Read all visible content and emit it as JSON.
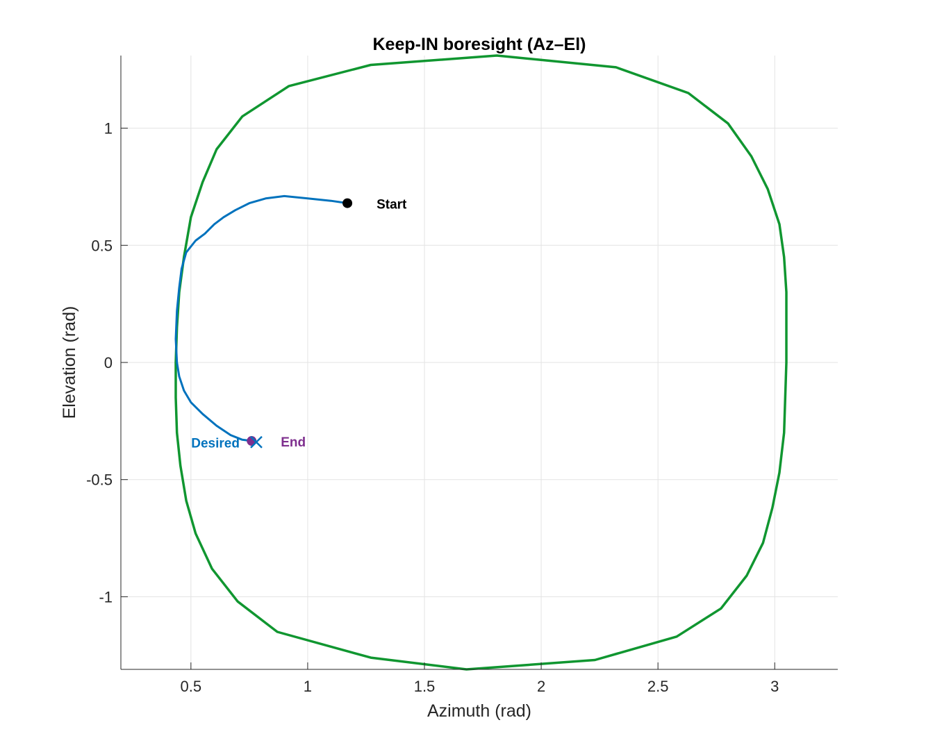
{
  "chart_data": {
    "type": "line",
    "title": "Keep-IN boresight (Az–El)",
    "xlabel": "Azimuth (rad)",
    "ylabel": "Elevation (rad)",
    "xlim": [
      0.2,
      3.27
    ],
    "ylim": [
      -1.31,
      1.31
    ],
    "xticks": [
      0.5,
      1,
      1.5,
      2,
      2.5,
      3
    ],
    "xtick_labels": [
      "0.5",
      "1",
      "1.5",
      "2",
      "2.5",
      "3"
    ],
    "yticks": [
      -1,
      -0.5,
      0,
      0.5,
      1
    ],
    "ytick_labels": [
      "-1",
      "-0.5",
      "0",
      "0.5",
      "1"
    ],
    "grid": true,
    "series": [
      {
        "role": "boundary",
        "color": "#109630",
        "x": [
          1.81,
          2.32,
          2.63,
          2.8,
          2.9,
          2.97,
          3.02,
          3.04,
          3.05,
          3.05,
          3.04,
          3.02,
          2.99,
          2.95,
          2.88,
          2.77,
          2.58,
          2.23,
          1.68,
          1.27,
          0.87,
          0.7,
          0.59,
          0.52,
          0.48,
          0.455,
          0.44,
          0.435,
          0.435,
          0.44,
          0.45,
          0.47,
          0.5,
          0.55,
          0.61,
          0.72,
          0.92,
          1.27,
          1.81
        ],
        "y": [
          1.31,
          1.26,
          1.15,
          1.02,
          0.88,
          0.74,
          0.59,
          0.45,
          0.3,
          0.0,
          -0.3,
          -0.47,
          -0.62,
          -0.77,
          -0.91,
          -1.05,
          -1.17,
          -1.27,
          -1.31,
          -1.26,
          -1.15,
          -1.02,
          -0.88,
          -0.73,
          -0.59,
          -0.44,
          -0.3,
          -0.15,
          0.0,
          0.15,
          0.3,
          0.45,
          0.62,
          0.77,
          0.91,
          1.05,
          1.18,
          1.27,
          1.31
        ]
      },
      {
        "role": "trajectory",
        "color": "#0072BD",
        "x": [
          1.17,
          1.1,
          1.0,
          0.9,
          0.82,
          0.75,
          0.69,
          0.64,
          0.6,
          0.58,
          0.56,
          0.52,
          0.48,
          0.46,
          0.45,
          0.44,
          0.435,
          0.44,
          0.45,
          0.47,
          0.5,
          0.55,
          0.61,
          0.67,
          0.72,
          0.76
        ],
        "y": [
          0.68,
          0.69,
          0.7,
          0.71,
          0.7,
          0.68,
          0.65,
          0.62,
          0.59,
          0.57,
          0.55,
          0.52,
          0.47,
          0.4,
          0.32,
          0.22,
          0.1,
          0.0,
          -0.06,
          -0.12,
          -0.17,
          -0.22,
          -0.27,
          -0.31,
          -0.33,
          -0.335
        ]
      }
    ],
    "markers": [
      {
        "role": "start",
        "shape": "filled-circle",
        "color": "#000000",
        "x": 1.17,
        "y": 0.68,
        "label": "Start"
      },
      {
        "role": "end",
        "shape": "filled-circle",
        "color": "#7E2F8E",
        "x": 0.76,
        "y": -0.335,
        "label": "End"
      },
      {
        "role": "desired",
        "shape": "x",
        "color": "#0072BD",
        "x": 0.78,
        "y": -0.34,
        "label": "Desired"
      }
    ]
  }
}
